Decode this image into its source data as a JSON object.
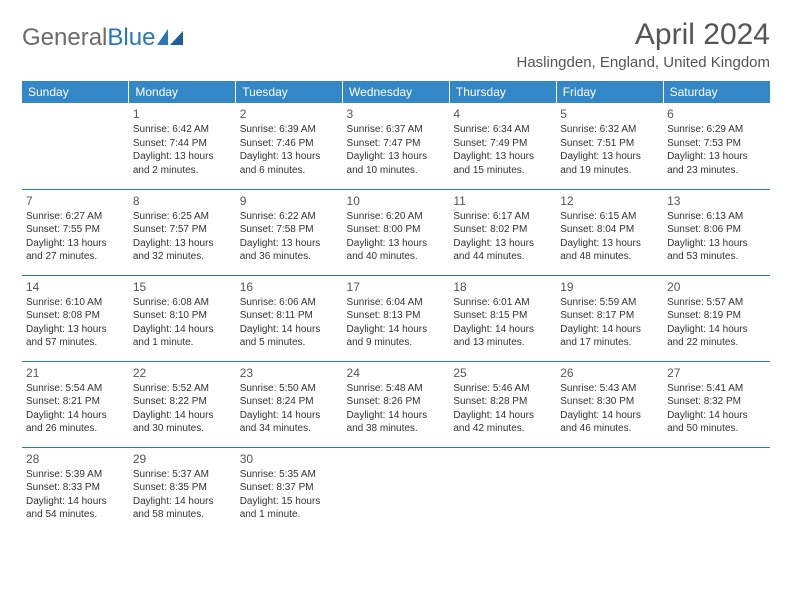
{
  "brand": {
    "name1": "General",
    "name2": "Blue"
  },
  "title": "April 2024",
  "location": "Haslingden, England, United Kingdom",
  "colors": {
    "header_bg": "#3487c7",
    "border": "#2a76b8",
    "text": "#333333",
    "muted": "#555555"
  },
  "weekdays": [
    "Sunday",
    "Monday",
    "Tuesday",
    "Wednesday",
    "Thursday",
    "Friday",
    "Saturday"
  ],
  "first_weekday_index": 1,
  "days": [
    {
      "n": 1,
      "sunrise": "6:42 AM",
      "sunset": "7:44 PM",
      "daylight": "13 hours and 2 minutes."
    },
    {
      "n": 2,
      "sunrise": "6:39 AM",
      "sunset": "7:46 PM",
      "daylight": "13 hours and 6 minutes."
    },
    {
      "n": 3,
      "sunrise": "6:37 AM",
      "sunset": "7:47 PM",
      "daylight": "13 hours and 10 minutes."
    },
    {
      "n": 4,
      "sunrise": "6:34 AM",
      "sunset": "7:49 PM",
      "daylight": "13 hours and 15 minutes."
    },
    {
      "n": 5,
      "sunrise": "6:32 AM",
      "sunset": "7:51 PM",
      "daylight": "13 hours and 19 minutes."
    },
    {
      "n": 6,
      "sunrise": "6:29 AM",
      "sunset": "7:53 PM",
      "daylight": "13 hours and 23 minutes."
    },
    {
      "n": 7,
      "sunrise": "6:27 AM",
      "sunset": "7:55 PM",
      "daylight": "13 hours and 27 minutes."
    },
    {
      "n": 8,
      "sunrise": "6:25 AM",
      "sunset": "7:57 PM",
      "daylight": "13 hours and 32 minutes."
    },
    {
      "n": 9,
      "sunrise": "6:22 AM",
      "sunset": "7:58 PM",
      "daylight": "13 hours and 36 minutes."
    },
    {
      "n": 10,
      "sunrise": "6:20 AM",
      "sunset": "8:00 PM",
      "daylight": "13 hours and 40 minutes."
    },
    {
      "n": 11,
      "sunrise": "6:17 AM",
      "sunset": "8:02 PM",
      "daylight": "13 hours and 44 minutes."
    },
    {
      "n": 12,
      "sunrise": "6:15 AM",
      "sunset": "8:04 PM",
      "daylight": "13 hours and 48 minutes."
    },
    {
      "n": 13,
      "sunrise": "6:13 AM",
      "sunset": "8:06 PM",
      "daylight": "13 hours and 53 minutes."
    },
    {
      "n": 14,
      "sunrise": "6:10 AM",
      "sunset": "8:08 PM",
      "daylight": "13 hours and 57 minutes."
    },
    {
      "n": 15,
      "sunrise": "6:08 AM",
      "sunset": "8:10 PM",
      "daylight": "14 hours and 1 minute."
    },
    {
      "n": 16,
      "sunrise": "6:06 AM",
      "sunset": "8:11 PM",
      "daylight": "14 hours and 5 minutes."
    },
    {
      "n": 17,
      "sunrise": "6:04 AM",
      "sunset": "8:13 PM",
      "daylight": "14 hours and 9 minutes."
    },
    {
      "n": 18,
      "sunrise": "6:01 AM",
      "sunset": "8:15 PM",
      "daylight": "14 hours and 13 minutes."
    },
    {
      "n": 19,
      "sunrise": "5:59 AM",
      "sunset": "8:17 PM",
      "daylight": "14 hours and 17 minutes."
    },
    {
      "n": 20,
      "sunrise": "5:57 AM",
      "sunset": "8:19 PM",
      "daylight": "14 hours and 22 minutes."
    },
    {
      "n": 21,
      "sunrise": "5:54 AM",
      "sunset": "8:21 PM",
      "daylight": "14 hours and 26 minutes."
    },
    {
      "n": 22,
      "sunrise": "5:52 AM",
      "sunset": "8:22 PM",
      "daylight": "14 hours and 30 minutes."
    },
    {
      "n": 23,
      "sunrise": "5:50 AM",
      "sunset": "8:24 PM",
      "daylight": "14 hours and 34 minutes."
    },
    {
      "n": 24,
      "sunrise": "5:48 AM",
      "sunset": "8:26 PM",
      "daylight": "14 hours and 38 minutes."
    },
    {
      "n": 25,
      "sunrise": "5:46 AM",
      "sunset": "8:28 PM",
      "daylight": "14 hours and 42 minutes."
    },
    {
      "n": 26,
      "sunrise": "5:43 AM",
      "sunset": "8:30 PM",
      "daylight": "14 hours and 46 minutes."
    },
    {
      "n": 27,
      "sunrise": "5:41 AM",
      "sunset": "8:32 PM",
      "daylight": "14 hours and 50 minutes."
    },
    {
      "n": 28,
      "sunrise": "5:39 AM",
      "sunset": "8:33 PM",
      "daylight": "14 hours and 54 minutes."
    },
    {
      "n": 29,
      "sunrise": "5:37 AM",
      "sunset": "8:35 PM",
      "daylight": "14 hours and 58 minutes."
    },
    {
      "n": 30,
      "sunrise": "5:35 AM",
      "sunset": "8:37 PM",
      "daylight": "15 hours and 1 minute."
    }
  ],
  "labels": {
    "sunrise": "Sunrise:",
    "sunset": "Sunset:",
    "daylight": "Daylight:"
  }
}
